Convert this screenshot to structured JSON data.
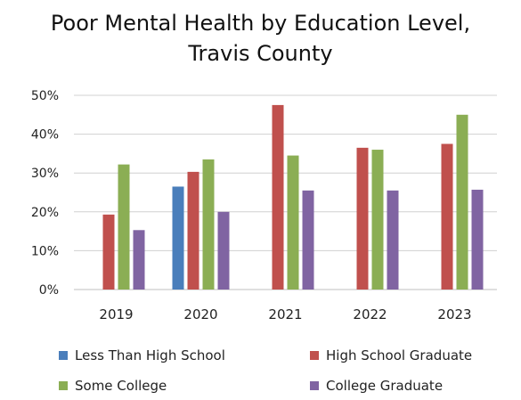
{
  "chart_data": {
    "type": "bar",
    "title_lines": [
      "Poor Mental Health by Education Level,",
      "Travis County"
    ],
    "categories": [
      "2019",
      "2020",
      "2021",
      "2022",
      "2023"
    ],
    "y_ticks": [
      "0%",
      "10%",
      "20%",
      "30%",
      "40%",
      "50%"
    ],
    "ylim": [
      0,
      50
    ],
    "grid": true,
    "legend_position": "bottom",
    "series": [
      {
        "name": "Less Than High School",
        "color": "#4a7ebb",
        "values": [
          null,
          26.5,
          null,
          null,
          null
        ]
      },
      {
        "name": "High School Graduate",
        "color": "#c0504d",
        "values": [
          19.3,
          30.3,
          47.5,
          36.5,
          37.5
        ]
      },
      {
        "name": "Some College",
        "color": "#8bae54",
        "values": [
          32.2,
          33.5,
          34.5,
          36.0,
          45.0
        ]
      },
      {
        "name": "College Graduate",
        "color": "#8064a2",
        "values": [
          15.3,
          20.0,
          25.5,
          25.5,
          25.7
        ]
      }
    ]
  }
}
